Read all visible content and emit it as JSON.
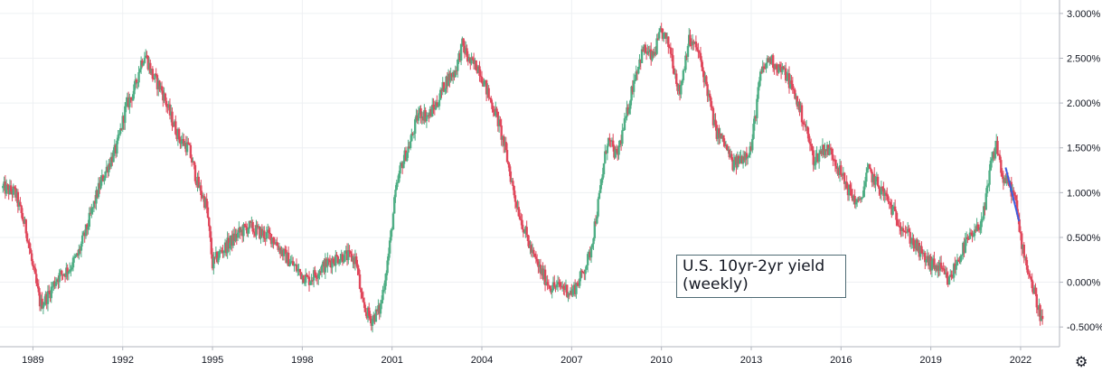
{
  "chart_data": {
    "type": "candlestick",
    "annotation": [
      "U.S. 10yr-2yr yield",
      "(weekly)"
    ],
    "x_ticks": [
      "1989",
      "1992",
      "1995",
      "1998",
      "2001",
      "2004",
      "2007",
      "2010",
      "2013",
      "2016",
      "2019",
      "2022"
    ],
    "y_ticks": [
      "3.000%",
      "2.500%",
      "2.000%",
      "1.500%",
      "1.000%",
      "0.500%",
      "0.000%",
      "-0.500%"
    ],
    "ylim": [
      -0.72,
      3.15
    ],
    "xlim": [
      1987.9,
      2023.3
    ],
    "grid": true,
    "colors": {
      "up": "#4fae85",
      "down": "#e0485c",
      "trendline": "#3d5ee0",
      "grid": "#eef0f3",
      "axis": "#b2b5be"
    },
    "trendline": {
      "x": [
        2021.5,
        2021.95
      ],
      "y": [
        1.28,
        0.68
      ]
    },
    "series": [
      {
        "x": 1988.0,
        "y": 1.05
      },
      {
        "x": 1988.4,
        "y": 1.0
      },
      {
        "x": 1988.8,
        "y": 0.55
      },
      {
        "x": 1989.0,
        "y": 0.15
      },
      {
        "x": 1989.25,
        "y": -0.25
      },
      {
        "x": 1989.5,
        "y": -0.15
      },
      {
        "x": 1989.8,
        "y": 0.05
      },
      {
        "x": 1990.2,
        "y": 0.15
      },
      {
        "x": 1990.5,
        "y": 0.3
      },
      {
        "x": 1990.8,
        "y": 0.6
      },
      {
        "x": 1991.2,
        "y": 1.05
      },
      {
        "x": 1991.5,
        "y": 1.3
      },
      {
        "x": 1991.8,
        "y": 1.5
      },
      {
        "x": 1992.1,
        "y": 1.95
      },
      {
        "x": 1992.4,
        "y": 2.15
      },
      {
        "x": 1992.6,
        "y": 2.45
      },
      {
        "x": 1992.75,
        "y": 2.55
      },
      {
        "x": 1993.0,
        "y": 2.3
      },
      {
        "x": 1993.3,
        "y": 2.15
      },
      {
        "x": 1993.6,
        "y": 1.85
      },
      {
        "x": 1993.9,
        "y": 1.6
      },
      {
        "x": 1994.2,
        "y": 1.5
      },
      {
        "x": 1994.5,
        "y": 1.1
      },
      {
        "x": 1994.8,
        "y": 0.85
      },
      {
        "x": 1995.0,
        "y": 0.2
      },
      {
        "x": 1995.3,
        "y": 0.35
      },
      {
        "x": 1995.6,
        "y": 0.45
      },
      {
        "x": 1995.9,
        "y": 0.55
      },
      {
        "x": 1996.2,
        "y": 0.62
      },
      {
        "x": 1996.6,
        "y": 0.55
      },
      {
        "x": 1997.0,
        "y": 0.5
      },
      {
        "x": 1997.4,
        "y": 0.3
      },
      {
        "x": 1997.8,
        "y": 0.15
      },
      {
        "x": 1998.2,
        "y": 0.02
      },
      {
        "x": 1998.6,
        "y": 0.15
      },
      {
        "x": 1999.0,
        "y": 0.25
      },
      {
        "x": 1999.4,
        "y": 0.3
      },
      {
        "x": 1999.8,
        "y": 0.25
      },
      {
        "x": 2000.0,
        "y": -0.25
      },
      {
        "x": 2000.3,
        "y": -0.42
      },
      {
        "x": 2000.6,
        "y": -0.3
      },
      {
        "x": 2000.9,
        "y": 0.35
      },
      {
        "x": 2001.1,
        "y": 0.95
      },
      {
        "x": 2001.3,
        "y": 1.3
      },
      {
        "x": 2001.6,
        "y": 1.55
      },
      {
        "x": 2001.9,
        "y": 1.9
      },
      {
        "x": 2002.2,
        "y": 1.85
      },
      {
        "x": 2002.5,
        "y": 2.0
      },
      {
        "x": 2002.8,
        "y": 2.25
      },
      {
        "x": 2003.1,
        "y": 2.35
      },
      {
        "x": 2003.35,
        "y": 2.65
      },
      {
        "x": 2003.6,
        "y": 2.45
      },
      {
        "x": 2003.9,
        "y": 2.4
      },
      {
        "x": 2004.2,
        "y": 2.1
      },
      {
        "x": 2004.5,
        "y": 1.85
      },
      {
        "x": 2004.8,
        "y": 1.45
      },
      {
        "x": 2005.1,
        "y": 0.95
      },
      {
        "x": 2005.4,
        "y": 0.6
      },
      {
        "x": 2005.7,
        "y": 0.3
      },
      {
        "x": 2006.0,
        "y": 0.1
      },
      {
        "x": 2006.3,
        "y": -0.05
      },
      {
        "x": 2006.7,
        "y": -0.05
      },
      {
        "x": 2007.0,
        "y": -0.12
      },
      {
        "x": 2007.3,
        "y": 0.05
      },
      {
        "x": 2007.6,
        "y": 0.3
      },
      {
        "x": 2007.9,
        "y": 0.9
      },
      {
        "x": 2008.2,
        "y": 1.6
      },
      {
        "x": 2008.5,
        "y": 1.4
      },
      {
        "x": 2008.8,
        "y": 1.8
      },
      {
        "x": 2009.1,
        "y": 2.3
      },
      {
        "x": 2009.4,
        "y": 2.6
      },
      {
        "x": 2009.7,
        "y": 2.5
      },
      {
        "x": 2010.0,
        "y": 2.8
      },
      {
        "x": 2010.3,
        "y": 2.6
      },
      {
        "x": 2010.6,
        "y": 2.1
      },
      {
        "x": 2010.9,
        "y": 2.7
      },
      {
        "x": 2011.2,
        "y": 2.6
      },
      {
        "x": 2011.5,
        "y": 2.2
      },
      {
        "x": 2011.8,
        "y": 1.7
      },
      {
        "x": 2012.1,
        "y": 1.55
      },
      {
        "x": 2012.4,
        "y": 1.3
      },
      {
        "x": 2012.7,
        "y": 1.4
      },
      {
        "x": 2013.0,
        "y": 1.5
      },
      {
        "x": 2013.3,
        "y": 2.3
      },
      {
        "x": 2013.6,
        "y": 2.5
      },
      {
        "x": 2013.9,
        "y": 2.4
      },
      {
        "x": 2014.2,
        "y": 2.3
      },
      {
        "x": 2014.5,
        "y": 2.05
      },
      {
        "x": 2014.8,
        "y": 1.75
      },
      {
        "x": 2015.1,
        "y": 1.35
      },
      {
        "x": 2015.4,
        "y": 1.5
      },
      {
        "x": 2015.7,
        "y": 1.45
      },
      {
        "x": 2016.0,
        "y": 1.2
      },
      {
        "x": 2016.3,
        "y": 1.0
      },
      {
        "x": 2016.6,
        "y": 0.85
      },
      {
        "x": 2016.9,
        "y": 1.25
      },
      {
        "x": 2017.2,
        "y": 1.1
      },
      {
        "x": 2017.5,
        "y": 0.95
      },
      {
        "x": 2017.8,
        "y": 0.75
      },
      {
        "x": 2018.1,
        "y": 0.6
      },
      {
        "x": 2018.4,
        "y": 0.45
      },
      {
        "x": 2018.7,
        "y": 0.3
      },
      {
        "x": 2019.0,
        "y": 0.2
      },
      {
        "x": 2019.3,
        "y": 0.15
      },
      {
        "x": 2019.6,
        "y": 0.0
      },
      {
        "x": 2019.9,
        "y": 0.25
      },
      {
        "x": 2020.2,
        "y": 0.45
      },
      {
        "x": 2020.5,
        "y": 0.55
      },
      {
        "x": 2020.8,
        "y": 0.8
      },
      {
        "x": 2021.0,
        "y": 1.3
      },
      {
        "x": 2021.2,
        "y": 1.55
      },
      {
        "x": 2021.4,
        "y": 1.15
      },
      {
        "x": 2021.6,
        "y": 1.1
      },
      {
        "x": 2021.8,
        "y": 0.95
      },
      {
        "x": 2022.0,
        "y": 0.5
      },
      {
        "x": 2022.2,
        "y": 0.2
      },
      {
        "x": 2022.4,
        "y": -0.05
      },
      {
        "x": 2022.6,
        "y": -0.3
      },
      {
        "x": 2022.75,
        "y": -0.45
      }
    ]
  }
}
